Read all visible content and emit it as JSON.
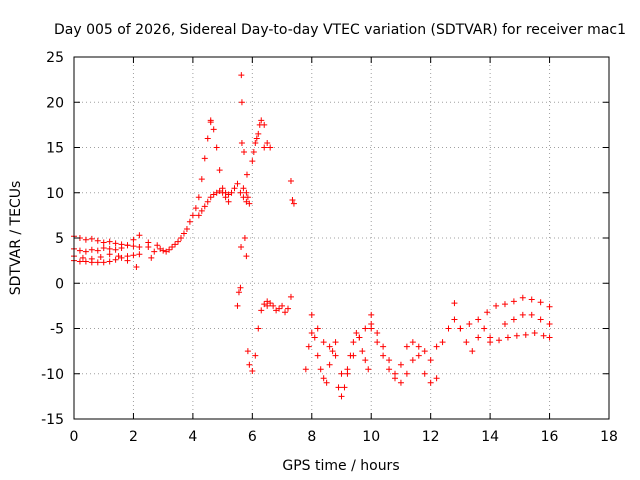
{
  "chart_data": {
    "type": "scatter",
    "title": "Day 005 of 2026, Sidereal Day-to-day VTEC variation (SDTVAR) for receiver mac1",
    "xlabel": "GPS time / hours",
    "ylabel": "SDTVAR / TECUs",
    "xlim": [
      0,
      18
    ],
    "ylim": [
      -15,
      25
    ],
    "xticks": [
      0,
      2,
      4,
      6,
      8,
      10,
      12,
      14,
      16,
      18
    ],
    "yticks": [
      -15,
      -10,
      -5,
      0,
      5,
      10,
      15,
      20,
      25
    ],
    "grid": true,
    "marker": "+",
    "color": "#ff0000",
    "series": [
      {
        "name": "SDTVAR",
        "x": [
          0.0,
          0.2,
          0.4,
          0.6,
          0.8,
          1.0,
          1.2,
          1.4,
          1.6,
          1.8,
          2.0,
          2.2,
          0.0,
          0.2,
          0.4,
          0.6,
          0.8,
          1.0,
          1.2,
          1.4,
          1.6,
          1.8,
          2.0,
          2.2,
          0.0,
          0.2,
          0.4,
          0.6,
          0.8,
          1.0,
          1.2,
          1.4,
          1.6,
          1.8,
          2.0,
          2.2,
          0.0,
          0.3,
          0.6,
          0.9,
          1.2,
          1.5,
          1.8,
          2.1,
          2.5,
          2.5,
          2.6,
          2.7,
          2.8,
          2.9,
          3.0,
          3.1,
          3.2,
          3.3,
          3.4,
          3.5,
          3.6,
          3.7,
          3.8,
          3.9,
          4.0,
          4.1,
          4.2,
          4.3,
          4.4,
          4.5,
          4.6,
          4.6,
          4.7,
          4.8,
          4.9,
          5.0,
          5.1,
          5.2,
          5.3,
          5.4,
          5.5,
          5.6,
          5.7,
          5.8,
          5.9,
          4.2,
          4.3,
          4.4,
          4.5,
          4.6,
          4.7,
          4.8,
          4.9,
          5.0,
          5.1,
          5.2,
          5.5,
          5.55,
          5.6,
          5.62,
          5.63,
          5.65,
          5.65,
          5.7,
          5.72,
          5.75,
          5.8,
          5.85,
          5.9,
          6.0,
          6.1,
          6.2,
          6.3,
          6.4,
          6.5,
          6.4,
          6.5,
          6.6,
          6.0,
          6.05,
          6.1,
          6.15,
          6.2,
          6.25,
          6.3,
          6.4,
          6.5,
          6.6,
          6.7,
          6.8,
          6.9,
          7.0,
          7.1,
          7.2,
          7.3,
          7.3,
          7.35,
          7.4,
          5.8,
          5.82,
          5.85,
          7.8,
          7.9,
          8.0,
          8.1,
          8.2,
          8.3,
          8.4,
          8.5,
          8.6,
          8.7,
          8.8,
          8.9,
          9.0,
          9.1,
          9.2,
          9.3,
          9.4,
          9.5,
          9.6,
          9.7,
          9.8,
          9.9,
          8.0,
          8.2,
          8.4,
          8.6,
          8.8,
          9.0,
          9.2,
          9.4,
          9.6,
          9.8,
          10.0,
          10.0,
          10.2,
          10.4,
          10.6,
          10.8,
          11.0,
          11.2,
          11.4,
          11.6,
          11.8,
          12.0,
          12.2,
          10.0,
          10.2,
          10.4,
          10.6,
          10.8,
          11.0,
          11.2,
          11.4,
          11.6,
          11.8,
          12.0,
          12.2,
          12.4,
          12.6,
          12.8,
          13.0,
          13.2,
          13.4,
          13.6,
          13.8,
          14.0,
          12.8,
          13.0,
          13.3,
          13.6,
          13.9,
          14.2,
          14.5,
          14.8,
          15.1,
          15.4,
          15.7,
          16.0,
          14.0,
          14.3,
          14.6,
          14.9,
          15.2,
          15.5,
          15.8,
          16.0,
          14.5,
          14.8,
          15.1,
          15.4,
          15.7,
          16.0
        ],
        "y": [
          5.2,
          5.0,
          4.8,
          4.9,
          4.7,
          4.5,
          4.6,
          4.4,
          4.3,
          4.2,
          4.1,
          4.0,
          3.8,
          3.6,
          3.5,
          3.7,
          3.6,
          3.9,
          3.8,
          3.7,
          3.9,
          4.2,
          4.8,
          5.3,
          2.5,
          2.4,
          2.4,
          2.3,
          2.3,
          2.3,
          2.4,
          2.6,
          2.8,
          3.0,
          3.1,
          3.2,
          3.0,
          2.8,
          2.7,
          2.9,
          3.2,
          3.0,
          2.5,
          1.8,
          4.5,
          4.0,
          2.8,
          3.5,
          4.2,
          3.8,
          3.6,
          3.5,
          3.7,
          4.0,
          4.3,
          4.6,
          5.0,
          5.5,
          6.0,
          6.8,
          7.5,
          8.3,
          9.5,
          11.5,
          13.8,
          16.0,
          17.8,
          18.0,
          17.0,
          15.0,
          12.5,
          10.5,
          10.0,
          9.8,
          10.0,
          10.5,
          11.0,
          10.0,
          9.5,
          9.0,
          8.8,
          7.5,
          8.0,
          8.5,
          9.0,
          9.5,
          9.8,
          10.0,
          10.2,
          10.0,
          9.5,
          9.0,
          -2.5,
          -1.0,
          -0.5,
          4.0,
          23.0,
          20.0,
          15.5,
          10.5,
          14.5,
          5.0,
          3.0,
          -7.5,
          -9.0,
          -9.7,
          -8.0,
          -5.0,
          -3.0,
          -2.3,
          -2.5,
          15.0,
          15.5,
          15.0,
          13.5,
          14.5,
          15.5,
          16.0,
          16.5,
          17.5,
          18.0,
          17.5,
          -2.0,
          -2.2,
          -2.5,
          -3.0,
          -2.8,
          -2.5,
          -3.2,
          -2.8,
          -1.5,
          11.3,
          9.2,
          8.8,
          10.0,
          12.0,
          9.5,
          -9.5,
          -7.0,
          -5.5,
          -6.0,
          -8.0,
          -9.5,
          -10.5,
          -11.0,
          -9.0,
          -7.5,
          -6.5,
          -11.5,
          -12.5,
          -11.5,
          -10.0,
          -8.0,
          -6.5,
          -5.5,
          -6.0,
          -7.5,
          -8.5,
          -9.5,
          -3.5,
          -5.0,
          -6.5,
          -7.0,
          -8.0,
          -10.0,
          -9.5,
          -8.0,
          -6.0,
          -5.0,
          -4.5,
          -3.5,
          -5.5,
          -7.0,
          -8.5,
          -10.0,
          -9.0,
          -7.0,
          -6.5,
          -8.0,
          -10.0,
          -11.0,
          -10.5,
          -5.0,
          -6.5,
          -8.0,
          -9.5,
          -10.5,
          -11.0,
          -10.0,
          -8.5,
          -7.0,
          -7.5,
          -8.5,
          -7.0,
          -6.5,
          -5.0,
          -4.0,
          -5.0,
          -6.5,
          -7.5,
          -6.0,
          -5.0,
          -6.0,
          -2.2,
          -5.0,
          -4.5,
          -4.0,
          -3.2,
          -2.5,
          -2.3,
          -2.0,
          -1.6,
          -1.8,
          -2.1,
          -2.6,
          -6.5,
          -6.3,
          -6.0,
          -5.8,
          -5.7,
          -5.5,
          -5.8,
          -6.0,
          -4.5,
          -4.0,
          -3.5,
          -3.5,
          -4.0,
          -4.5
        ]
      }
    ]
  }
}
